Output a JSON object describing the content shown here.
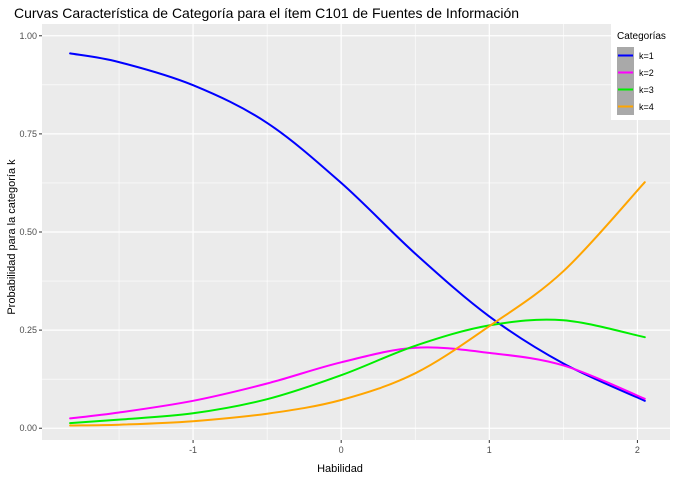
{
  "chart_data": {
    "type": "line",
    "title": "Curvas Característica de Categoría para el ítem C101 de Fuentes de Información",
    "xlabel": "Habilidad",
    "ylabel": "Probabilidad para la categoría k",
    "xlim": [
      -2.02,
      2.22
    ],
    "ylim": [
      -0.03,
      1.03
    ],
    "x_ticks": [
      -1,
      0,
      1,
      2
    ],
    "x_tick_labels": [
      "-1",
      "0",
      "1",
      "2"
    ],
    "y_ticks": [
      0,
      0.25,
      0.5,
      0.75,
      1
    ],
    "y_tick_labels": [
      "0.00",
      "0.25",
      "0.50",
      "0.75",
      "1.00"
    ],
    "grid": true,
    "background": "#ebebeb",
    "legend": {
      "title": "Categorías",
      "position": "top-right"
    },
    "x": [
      -1.83,
      -1.5,
      -1.0,
      -0.5,
      0.0,
      0.5,
      1.0,
      1.5,
      2.05
    ],
    "series": [
      {
        "name": "k=1",
        "color": "#0000ff",
        "values": [
          0.955,
          0.933,
          0.874,
          0.778,
          0.625,
          0.445,
          0.285,
          0.165,
          0.07
        ]
      },
      {
        "name": "k=2",
        "color": "#ff00ff",
        "values": [
          0.025,
          0.04,
          0.07,
          0.114,
          0.168,
          0.205,
          0.192,
          0.16,
          0.075
        ]
      },
      {
        "name": "k=3",
        "color": "#00ee00",
        "values": [
          0.013,
          0.022,
          0.038,
          0.074,
          0.135,
          0.21,
          0.262,
          0.275,
          0.232
        ]
      },
      {
        "name": "k=4",
        "color": "#ffa500",
        "values": [
          0.007,
          0.009,
          0.018,
          0.037,
          0.072,
          0.14,
          0.26,
          0.4,
          0.627
        ]
      }
    ]
  }
}
